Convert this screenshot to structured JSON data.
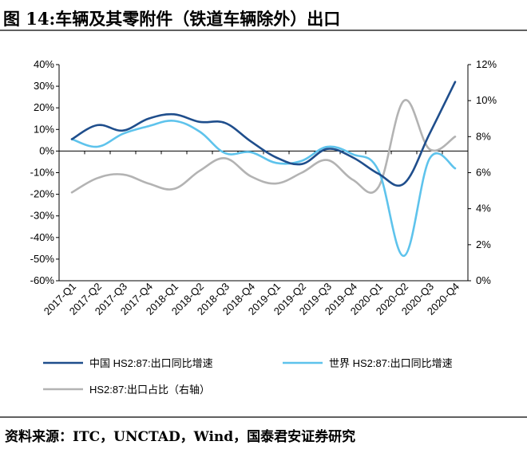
{
  "figure": {
    "title": "图 14:车辆及其零附件（铁道车辆除外）出口",
    "source": "资料来源：ITC，UNCTAD，Wind，国泰君安证券研究"
  },
  "chart_data": {
    "type": "line",
    "categories": [
      "2017-Q1",
      "2017-Q2",
      "2017-Q3",
      "2017-Q4",
      "2018-Q1",
      "2018-Q2",
      "2018-Q3",
      "2018-Q4",
      "2019-Q1",
      "2019-Q2",
      "2019-Q3",
      "2019-Q4",
      "2020-Q1",
      "2020-Q2",
      "2020-Q3",
      "2020-Q4"
    ],
    "y_left": {
      "ticks": [
        "40%",
        "30%",
        "20%",
        "10%",
        "0%",
        "-10%",
        "-20%",
        "-30%",
        "-40%",
        "-50%",
        "-60%"
      ],
      "range": [
        -60,
        40
      ],
      "unit": "%"
    },
    "y_right": {
      "ticks": [
        "12%",
        "10%",
        "8%",
        "6%",
        "4%",
        "2%",
        "0%"
      ],
      "range": [
        0,
        12
      ],
      "unit": "%"
    },
    "series": [
      {
        "name": "中国 HS2:87:出口同比增速",
        "axis": "left",
        "color": "#1f4e8c",
        "values": [
          5.5,
          12,
          9.5,
          15,
          17,
          13.5,
          13,
          4.5,
          -3,
          -6,
          1,
          -3,
          -10.5,
          -15,
          8,
          32
        ]
      },
      {
        "name": "世界 HS2:87:出口同比增速",
        "axis": "left",
        "color": "#5ec3ec",
        "values": [
          5.5,
          2,
          8,
          11.5,
          14,
          9,
          -1,
          -0.5,
          -5.5,
          -4.5,
          2,
          -1.5,
          -9,
          -48.5,
          -3.5,
          -8
        ]
      },
      {
        "name": "HS2:87:出口占比（右轴）",
        "axis": "right",
        "color": "#b3b3b3",
        "values": [
          4.9,
          5.7,
          5.9,
          5.4,
          5.1,
          6.1,
          6.8,
          5.8,
          5.4,
          6.0,
          6.7,
          5.6,
          5.2,
          10.0,
          7.3,
          8.0
        ]
      }
    ]
  }
}
